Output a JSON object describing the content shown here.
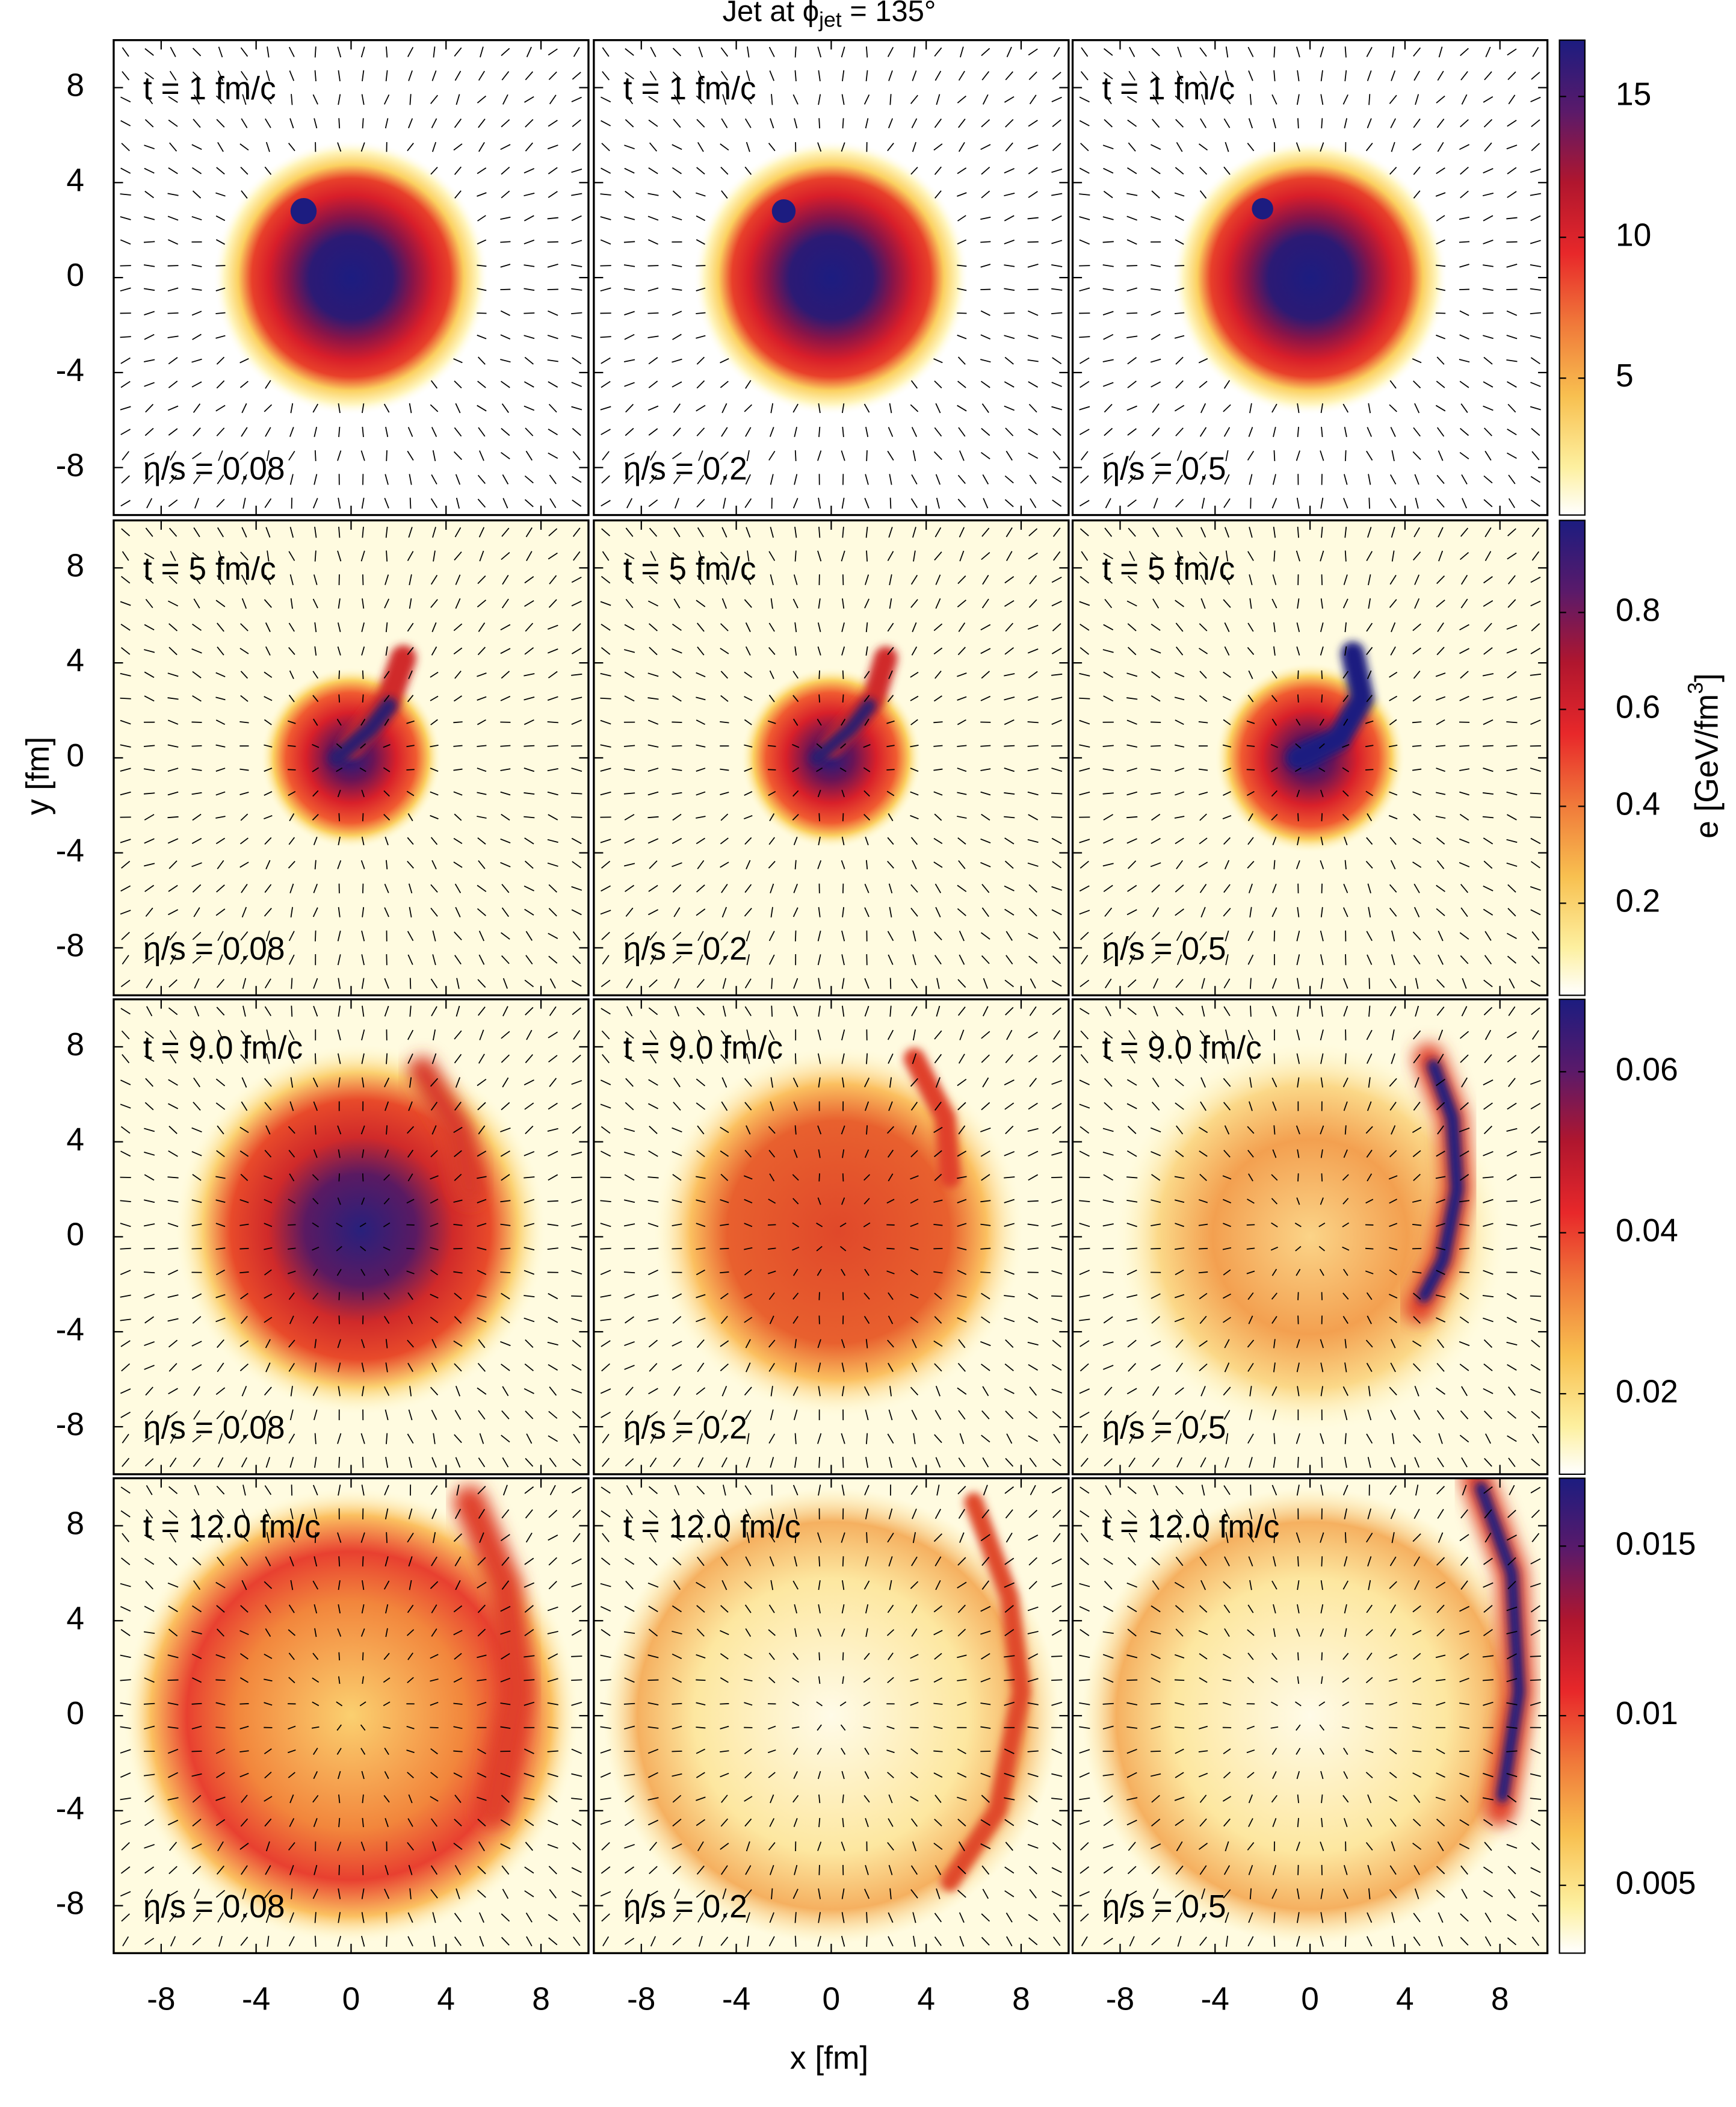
{
  "chart_data": {
    "type": "heatmap",
    "title_parts": [
      "Jet at ϕ",
      "jet",
      " = 135°"
    ],
    "xlabel": "x [fm]",
    "ylabel": "y [fm]",
    "colorbar_label_parts": [
      "e [GeV/fm",
      "3",
      "]"
    ],
    "xlim": [
      -10,
      10
    ],
    "ylim": [
      -10,
      10
    ],
    "xticks": [
      -8,
      -4,
      0,
      4,
      8
    ],
    "yticks": [
      -8,
      -4,
      0,
      4,
      8
    ],
    "rows": [
      {
        "time_label": "t = 1 fm/c",
        "clim": [
          0.14,
          17
        ],
        "cticks": [
          5,
          10,
          15
        ]
      },
      {
        "time_label": "t = 5 fm/c",
        "clim": [
          0.01,
          0.99
        ],
        "cticks": [
          0.2,
          0.4,
          0.6,
          0.8
        ]
      },
      {
        "time_label": "t = 9.0 fm/c",
        "clim": [
          0.01,
          0.069
        ],
        "cticks": [
          0.02,
          0.04,
          0.06
        ]
      },
      {
        "time_label": "t = 12.0 fm/c",
        "clim": [
          0.003,
          0.017
        ],
        "cticks": [
          0.005,
          0.01,
          0.015
        ]
      }
    ],
    "columns": [
      {
        "label": "η/s = 0.08"
      },
      {
        "label": "η/s = 0.2"
      },
      {
        "label": "η/s = 0.5"
      }
    ]
  }
}
